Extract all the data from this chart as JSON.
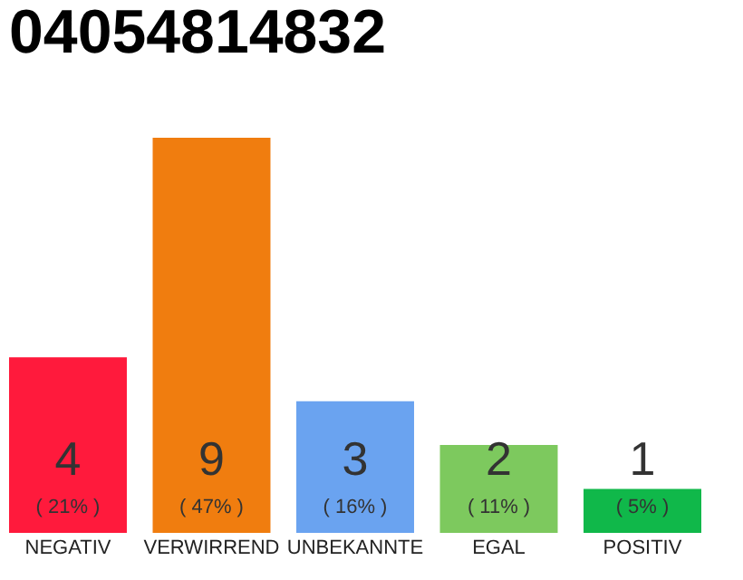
{
  "chart_data": {
    "type": "bar",
    "title": "04054814832",
    "categories": [
      "NEGATIV",
      "VERWIRREND",
      "UNBEKANNTE",
      "EGAL",
      "POSITIV"
    ],
    "values": [
      4,
      9,
      3,
      2,
      1
    ],
    "colors": [
      "#ff1a3c",
      "#f07d0f",
      "#6aa3f0",
      "#7dc95e",
      "#10b84a"
    ],
    "ylim": [
      0,
      9
    ],
    "tick_labels": "x",
    "grid": false,
    "data_labels": true,
    "annotations": [
      "( 21% )",
      "( 47% )",
      "( 16% )",
      "( 11% )",
      "( 5% )"
    ]
  }
}
